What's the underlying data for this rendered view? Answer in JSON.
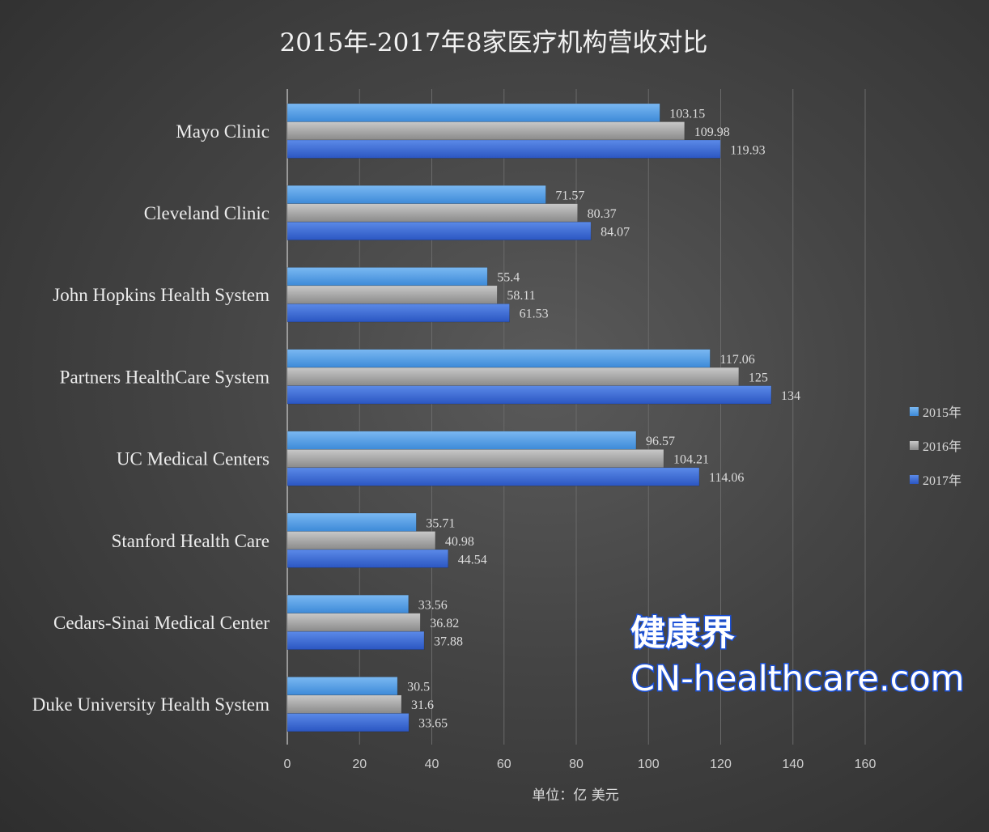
{
  "chart_data": {
    "type": "bar",
    "orientation": "horizontal",
    "title": "2015年-2017年8家医疗机构营收对比",
    "xlabel": "单位：亿 美元",
    "xlim": [
      0,
      160
    ],
    "x_ticks": [
      "0",
      "20",
      "40",
      "60",
      "80",
      "100",
      "120",
      "140",
      "160"
    ],
    "grid": true,
    "legend_position": "right",
    "categories": [
      "Mayo Clinic",
      "Cleveland Clinic",
      "John Hopkins Health System",
      "Partners HealthCare System",
      "UC Medical Centers",
      "Stanford Health Care",
      "Cedars-Sinai Medical Center",
      "Duke University Health System"
    ],
    "series": [
      {
        "name": "2015年",
        "color": "#5aa0e6",
        "values": [
          103.15,
          71.57,
          55.4,
          117.06,
          96.57,
          35.71,
          33.56,
          30.5
        ]
      },
      {
        "name": "2016年",
        "color": "#a8a8a8",
        "values": [
          109.98,
          80.37,
          58.11,
          125,
          104.21,
          40.98,
          36.82,
          31.6
        ]
      },
      {
        "name": "2017年",
        "color": "#3f70d8",
        "values": [
          119.93,
          84.07,
          61.53,
          134,
          114.06,
          44.54,
          37.88,
          33.65
        ]
      }
    ]
  },
  "watermark": {
    "line1": "健康界",
    "line2": "CN-healthcare.com"
  }
}
